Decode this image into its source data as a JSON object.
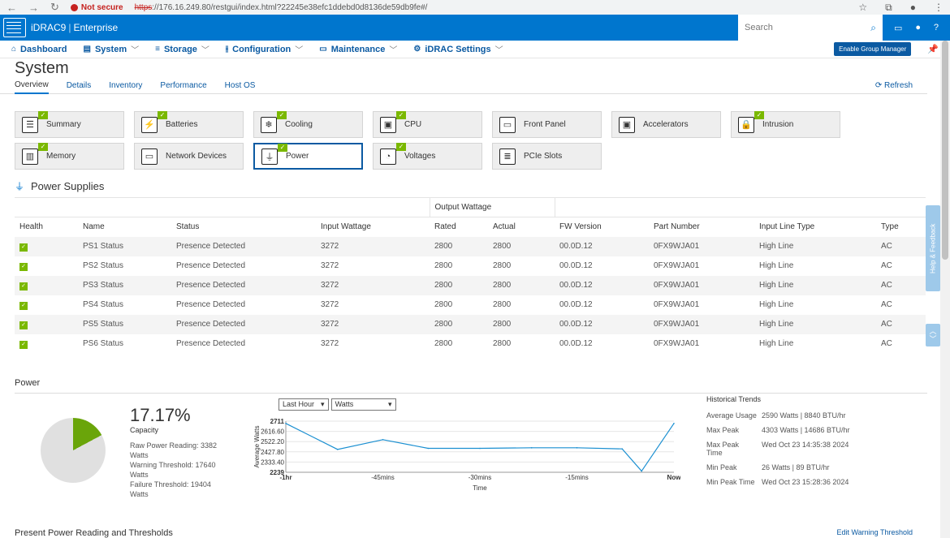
{
  "browser": {
    "back": "←",
    "forward": "→",
    "reload": "↻",
    "insecure_label": "Not secure",
    "url_scheme": "https",
    "url_rest": "://176.16.249.80/restgui/index.html?22245e38efc1ddebd0d8136de59db9fe#/"
  },
  "app": {
    "product": "iDRAC9",
    "edition": "Enterprise",
    "search_placeholder": "Search"
  },
  "menu": {
    "items": [
      {
        "label": "Dashboard",
        "icon": "home-icon",
        "glyph": "⌂",
        "chev": ""
      },
      {
        "label": "System",
        "icon": "server-icon",
        "glyph": "▤",
        "chev": "﹀"
      },
      {
        "label": "Storage",
        "icon": "database-icon",
        "glyph": "≡",
        "chev": "﹀"
      },
      {
        "label": "Configuration",
        "icon": "sliders-icon",
        "glyph": "⫲",
        "chev": "﹀"
      },
      {
        "label": "Maintenance",
        "icon": "wrench-icon",
        "glyph": "▭",
        "chev": "﹀"
      },
      {
        "label": "iDRAC Settings",
        "icon": "gear-icon",
        "glyph": "⚙",
        "chev": "﹀"
      }
    ],
    "enable_group_manager": "Enable Group Manager"
  },
  "page": {
    "title": "System",
    "tabs": [
      "Overview",
      "Details",
      "Inventory",
      "Performance",
      "Host OS"
    ],
    "active_tab": "Overview",
    "refresh": "Refresh"
  },
  "tiles": {
    "row1": [
      {
        "label": "Summary",
        "glyph": "☰",
        "ok": true
      },
      {
        "label": "Batteries",
        "glyph": "⚡",
        "ok": true
      },
      {
        "label": "Cooling",
        "glyph": "❄",
        "ok": true
      },
      {
        "label": "CPU",
        "glyph": "▣",
        "ok": true
      },
      {
        "label": "Front Panel",
        "glyph": "▭",
        "ok": false
      },
      {
        "label": "Accelerators",
        "glyph": "▣",
        "ok": false
      },
      {
        "label": "Intrusion",
        "glyph": "🔒",
        "ok": true
      }
    ],
    "row2": [
      {
        "label": "Memory",
        "glyph": "▥",
        "ok": true
      },
      {
        "label": "Network Devices",
        "glyph": "▭",
        "ok": false
      },
      {
        "label": "Power",
        "glyph": "⏚",
        "ok": true
      },
      {
        "label": "Voltages",
        "glyph": "◔",
        "ok": true
      },
      {
        "label": "PCIe Slots",
        "glyph": "≣",
        "ok": false
      }
    ],
    "selected": "Power"
  },
  "power_supplies": {
    "title": "Power Supplies",
    "group_header": "Output Wattage",
    "columns": [
      "Health",
      "Name",
      "Status",
      "Input Wattage",
      "Rated",
      "Actual",
      "FW Version",
      "Part Number",
      "Input Line Type",
      "Type"
    ],
    "rows": [
      [
        "PS1 Status",
        "Presence Detected",
        "3272",
        "2800",
        "2800",
        "00.0D.12",
        "0FX9WJA01",
        "High Line",
        "AC"
      ],
      [
        "PS2 Status",
        "Presence Detected",
        "3272",
        "2800",
        "2800",
        "00.0D.12",
        "0FX9WJA01",
        "High Line",
        "AC"
      ],
      [
        "PS3 Status",
        "Presence Detected",
        "3272",
        "2800",
        "2800",
        "00.0D.12",
        "0FX9WJA01",
        "High Line",
        "AC"
      ],
      [
        "PS4 Status",
        "Presence Detected",
        "3272",
        "2800",
        "2800",
        "00.0D.12",
        "0FX9WJA01",
        "High Line",
        "AC"
      ],
      [
        "PS5 Status",
        "Presence Detected",
        "3272",
        "2800",
        "2800",
        "00.0D.12",
        "0FX9WJA01",
        "High Line",
        "AC"
      ],
      [
        "PS6 Status",
        "Presence Detected",
        "3272",
        "2800",
        "2800",
        "00.0D.12",
        "0FX9WJA01",
        "High Line",
        "AC"
      ]
    ]
  },
  "power": {
    "title": "Power",
    "capacity_pct": "17.17%",
    "capacity_label": "Capacity",
    "capacity_fraction": 0.1717,
    "raw_power": "Raw Power Reading: 3382 Watts",
    "warning": "Warning Threshold: 17640 Watts",
    "failure": "Failure Threshold: 19404 Watts",
    "range_select": "Last Hour",
    "unit_select": "Watts",
    "historical": {
      "title": "Historical Trends",
      "rows": [
        {
          "k": "Average Usage",
          "v": "2590 Watts | 8840 BTU/hr"
        },
        {
          "k": "Max Peak",
          "v": "4303 Watts | 14686 BTU/hr"
        },
        {
          "k": "Max Peak Time",
          "v": "Wed Oct 23 14:35:38 2024"
        },
        {
          "k": "Min Peak",
          "v": "26 Watts | 89 BTU/hr"
        },
        {
          "k": "Min Peak Time",
          "v": "Wed Oct 23 15:28:36 2024"
        }
      ]
    }
  },
  "chart_data": {
    "type": "line",
    "ylabel": "Average Watts",
    "xlabel": "Time",
    "ylim": [
      2239,
      2711
    ],
    "yticks": [
      "2711",
      "2616.60",
      "2522.20",
      "2427.80",
      "2333.40",
      "2239"
    ],
    "xticks": [
      "-1hr",
      "-45mins",
      "-30mins",
      "-15mins",
      "Now"
    ],
    "x": [
      -60,
      -52,
      -45,
      -38,
      -30,
      -22,
      -15,
      -8,
      -5,
      0
    ],
    "values": [
      2690,
      2450,
      2540,
      2460,
      2460,
      2465,
      2465,
      2455,
      2250,
      2690
    ],
    "color": "#1a8fd1"
  },
  "bottom": {
    "title": "Present Power Reading and Thresholds",
    "edit": "Edit Warning Threshold"
  },
  "side": {
    "help": "Help & Feedback"
  }
}
